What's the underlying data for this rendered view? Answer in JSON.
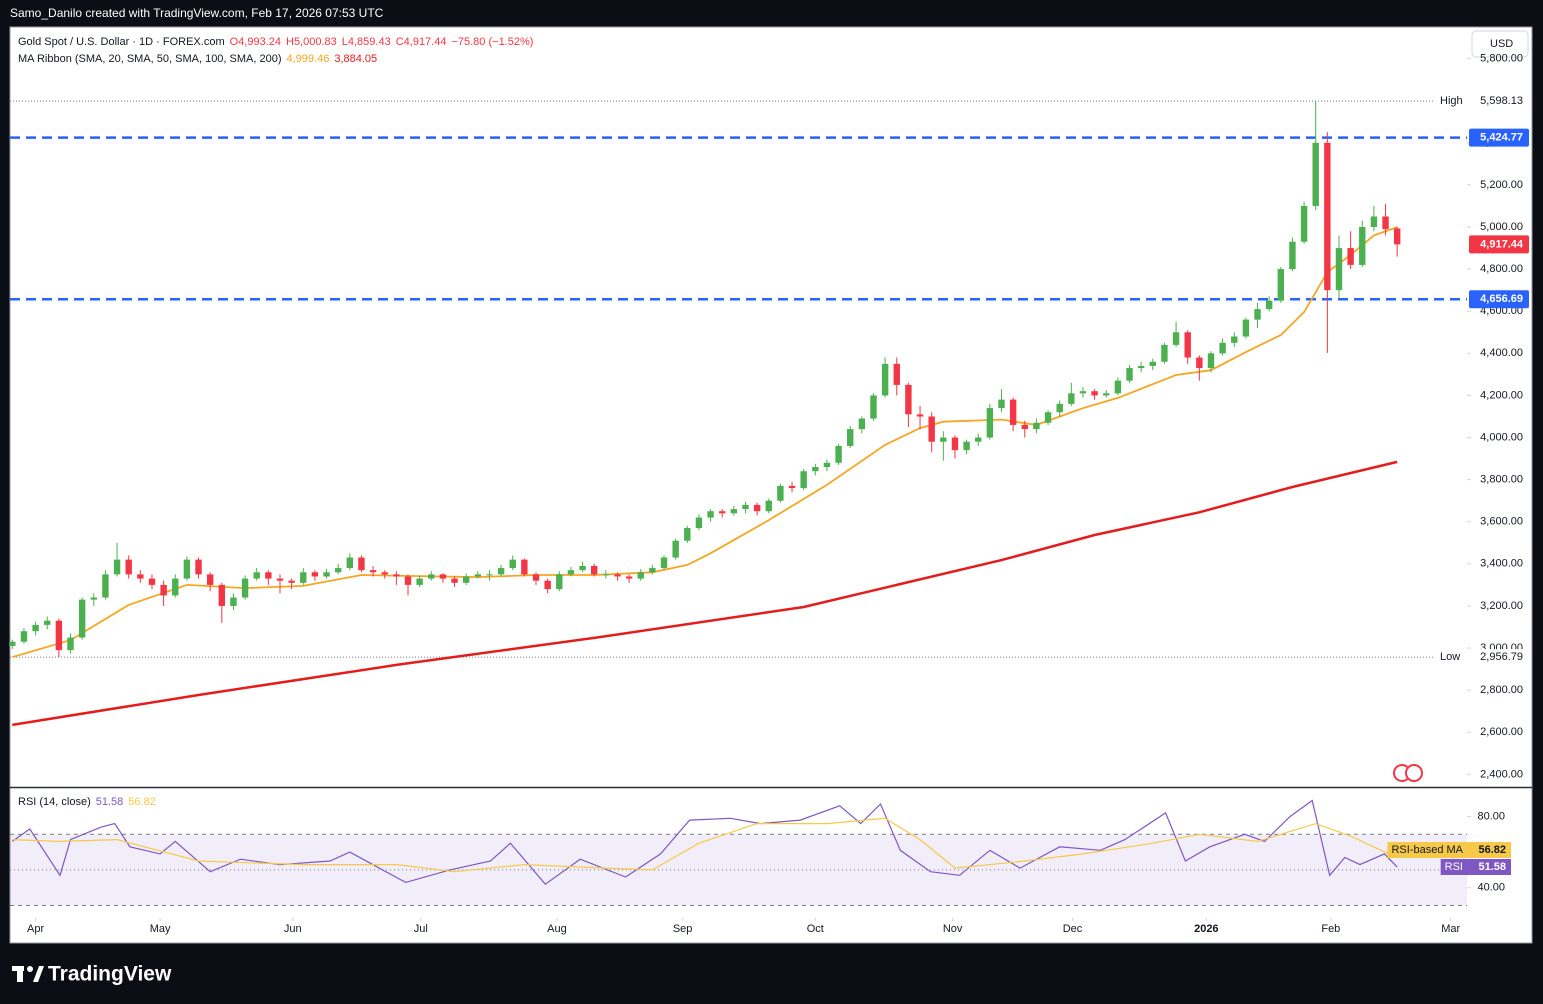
{
  "header": {
    "attribution": "Samo_Danilo created with TradingView.com, Feb 17, 2026 07:53 UTC"
  },
  "footer": {
    "brand": "TradingView"
  },
  "chart_data": [
    {
      "type": "candlestick",
      "title": "Gold Spot / U.S. Dollar · 1D · FOREX.com",
      "ohlc_labels": [
        "O4,993.24",
        "H5,000.83",
        "L4,859.43",
        "C4,917.44",
        "−75.80 (−1.52%)"
      ],
      "currency": "USD",
      "up_color": "#4caf50",
      "down_color": "#f23645",
      "ohlc": [
        [
          3010,
          3040,
          2995,
          3030
        ],
        [
          3030,
          3095,
          3020,
          3080
        ],
        [
          3080,
          3125,
          3060,
          3110
        ],
        [
          3110,
          3150,
          3090,
          3130
        ],
        [
          3130,
          3140,
          2956.79,
          2990
        ],
        [
          2990,
          3070,
          2975,
          3050
        ],
        [
          3050,
          3240,
          3040,
          3230
        ],
        [
          3230,
          3260,
          3200,
          3240
        ],
        [
          3240,
          3370,
          3230,
          3350
        ],
        [
          3350,
          3500,
          3340,
          3420
        ],
        [
          3420,
          3440,
          3330,
          3350
        ],
        [
          3350,
          3370,
          3310,
          3330
        ],
        [
          3330,
          3350,
          3280,
          3300
        ],
        [
          3300,
          3320,
          3200,
          3250
        ],
        [
          3250,
          3350,
          3240,
          3330
        ],
        [
          3330,
          3435,
          3320,
          3420
        ],
        [
          3420,
          3430,
          3330,
          3350
        ],
        [
          3350,
          3360,
          3270,
          3300
        ],
        [
          3300,
          3310,
          3120,
          3200
        ],
        [
          3200,
          3260,
          3180,
          3240
        ],
        [
          3240,
          3345,
          3230,
          3330
        ],
        [
          3330,
          3380,
          3320,
          3360
        ],
        [
          3360,
          3370,
          3300,
          3330
        ],
        [
          3330,
          3350,
          3260,
          3320
        ],
        [
          3320,
          3330,
          3280,
          3310
        ],
        [
          3310,
          3380,
          3300,
          3360
        ],
        [
          3360,
          3370,
          3320,
          3340
        ],
        [
          3340,
          3375,
          3330,
          3360
        ],
        [
          3360,
          3400,
          3350,
          3380
        ],
        [
          3380,
          3450,
          3370,
          3430
        ],
        [
          3430,
          3440,
          3360,
          3370
        ],
        [
          3370,
          3390,
          3340,
          3360
        ],
        [
          3360,
          3370,
          3330,
          3350
        ],
        [
          3350,
          3365,
          3300,
          3340
        ],
        [
          3340,
          3350,
          3250,
          3300
        ],
        [
          3300,
          3345,
          3290,
          3330
        ],
        [
          3330,
          3365,
          3320,
          3350
        ],
        [
          3350,
          3355,
          3310,
          3330
        ],
        [
          3330,
          3340,
          3290,
          3310
        ],
        [
          3310,
          3355,
          3300,
          3340
        ],
        [
          3340,
          3365,
          3330,
          3350
        ],
        [
          3350,
          3370,
          3320,
          3350
        ],
        [
          3350,
          3395,
          3340,
          3380
        ],
        [
          3380,
          3440,
          3370,
          3420
        ],
        [
          3420,
          3425,
          3340,
          3350
        ],
        [
          3350,
          3360,
          3300,
          3320
        ],
        [
          3320,
          3330,
          3260,
          3280
        ],
        [
          3280,
          3365,
          3270,
          3350
        ],
        [
          3350,
          3385,
          3340,
          3370
        ],
        [
          3370,
          3410,
          3360,
          3390
        ],
        [
          3390,
          3400,
          3340,
          3350
        ],
        [
          3350,
          3370,
          3330,
          3350
        ],
        [
          3350,
          3360,
          3320,
          3340
        ],
        [
          3340,
          3350,
          3310,
          3330
        ],
        [
          3330,
          3375,
          3320,
          3360
        ],
        [
          3360,
          3395,
          3350,
          3380
        ],
        [
          3380,
          3440,
          3370,
          3430
        ],
        [
          3430,
          3520,
          3420,
          3510
        ],
        [
          3510,
          3580,
          3500,
          3570
        ],
        [
          3570,
          3635,
          3560,
          3620
        ],
        [
          3620,
          3660,
          3600,
          3650
        ],
        [
          3650,
          3660,
          3620,
          3640
        ],
        [
          3640,
          3675,
          3630,
          3660
        ],
        [
          3660,
          3695,
          3640,
          3680
        ],
        [
          3680,
          3690,
          3630,
          3650
        ],
        [
          3650,
          3710,
          3640,
          3700
        ],
        [
          3700,
          3780,
          3690,
          3770
        ],
        [
          3770,
          3790,
          3740,
          3760
        ],
        [
          3760,
          3850,
          3750,
          3840
        ],
        [
          3840,
          3875,
          3820,
          3860
        ],
        [
          3860,
          3895,
          3840,
          3880
        ],
        [
          3880,
          3970,
          3870,
          3960
        ],
        [
          3960,
          4055,
          3950,
          4040
        ],
        [
          4040,
          4100,
          4020,
          4090
        ],
        [
          4090,
          4210,
          4080,
          4200
        ],
        [
          4200,
          4380,
          4190,
          4350
        ],
        [
          4350,
          4380,
          4200,
          4250
        ],
        [
          4250,
          4260,
          4050,
          4110
        ],
        [
          4110,
          4150,
          4040,
          4100
        ],
        [
          4100,
          4120,
          3930,
          3980
        ],
        [
          3980,
          4030,
          3890,
          4000
        ],
        [
          4000,
          4010,
          3900,
          3940
        ],
        [
          3940,
          3990,
          3920,
          3980
        ],
        [
          3980,
          4020,
          3960,
          4000
        ],
        [
          4000,
          4160,
          3990,
          4140
        ],
        [
          4140,
          4230,
          4120,
          4180
        ],
        [
          4180,
          4190,
          4030,
          4060
        ],
        [
          4060,
          4080,
          4000,
          4040
        ],
        [
          4040,
          4090,
          4020,
          4070
        ],
        [
          4070,
          4130,
          4060,
          4120
        ],
        [
          4120,
          4175,
          4100,
          4160
        ],
        [
          4160,
          4260,
          4150,
          4210
        ],
        [
          4210,
          4240,
          4190,
          4220
        ],
        [
          4220,
          4230,
          4180,
          4200
        ],
        [
          4200,
          4225,
          4190,
          4210
        ],
        [
          4210,
          4285,
          4200,
          4270
        ],
        [
          4270,
          4345,
          4260,
          4330
        ],
        [
          4330,
          4360,
          4310,
          4340
        ],
        [
          4340,
          4375,
          4320,
          4360
        ],
        [
          4360,
          4450,
          4350,
          4440
        ],
        [
          4440,
          4550,
          4430,
          4500
        ],
        [
          4500,
          4510,
          4350,
          4380
        ],
        [
          4380,
          4390,
          4270,
          4330
        ],
        [
          4330,
          4410,
          4310,
          4400
        ],
        [
          4400,
          4470,
          4390,
          4450
        ],
        [
          4450,
          4500,
          4430,
          4480
        ],
        [
          4480,
          4570,
          4470,
          4560
        ],
        [
          4560,
          4640,
          4520,
          4610
        ],
        [
          4610,
          4670,
          4600,
          4650
        ],
        [
          4650,
          4810,
          4640,
          4800
        ],
        [
          4800,
          4950,
          4790,
          4930
        ],
        [
          4930,
          5120,
          4920,
          5100
        ],
        [
          5100,
          5598.13,
          5080,
          5400
        ],
        [
          5400,
          5450,
          4402,
          4700
        ],
        [
          4700,
          4960,
          4660,
          4900
        ],
        [
          4900,
          4980,
          4800,
          4820
        ],
        [
          4820,
          5030,
          4810,
          5000
        ],
        [
          5000,
          5100,
          4980,
          5050
        ],
        [
          5050,
          5110,
          4960,
          4990
        ],
        [
          4993.24,
          5000.83,
          4859.43,
          4917.44
        ]
      ],
      "last_label": "4,917.44",
      "overlays": {
        "name": "MA Ribbon (SMA, 20, SMA, 50, SMA, 100, SMA, 200)",
        "series": [
          {
            "color": "#f5a623",
            "value_label": "4,999.46",
            "x": [
              0,
              5,
              10,
              15,
              20,
              25,
              30,
              35,
              40,
              45,
              50,
              55,
              58,
              60,
              65,
              70,
              75,
              78,
              80,
              85,
              88,
              92,
              95,
              100,
              103,
              106,
              109,
              111,
              113,
              115,
              117,
              119
            ],
            "values": [
              2957,
              3038,
              3205,
              3300,
              3285,
              3295,
              3347,
              3342,
              3337,
              3347,
              3347,
              3360,
              3395,
              3450,
              3608,
              3775,
              3965,
              4045,
              4075,
              4085,
              4060,
              4140,
              4188,
              4297,
              4320,
              4406,
              4487,
              4596,
              4786,
              4867,
              4960,
              4999.46
            ]
          },
          {
            "color": "#e51c1c",
            "value_label": "3,884.05",
            "x": [
              0,
              16,
              33,
              50,
              68,
              76,
              85,
              93,
              102,
              110,
              119
            ],
            "values": [
              2635,
              2777,
              2920,
              3048,
              3195,
              3300,
              3418,
              3537,
              3645,
              3765,
              3884.05
            ]
          }
        ]
      },
      "levels": [
        {
          "value": 5424.77,
          "label": "5,424.77",
          "color": "#2962ff"
        },
        {
          "value": 4656.69,
          "label": "4,656.69",
          "color": "#2962ff"
        }
      ],
      "high": {
        "text": "High",
        "value": 5598.13,
        "label": "5,598.13"
      },
      "low": {
        "text": "Low",
        "value": 2956.79,
        "label": "2,956.79"
      },
      "xlim": [
        -0.2,
        125
      ],
      "xticks": [
        {
          "value": 2,
          "label": "Apr"
        },
        {
          "value": 12.7,
          "label": "May"
        },
        {
          "value": 24.1,
          "label": "Jun"
        },
        {
          "value": 35.1,
          "label": "Jul"
        },
        {
          "value": 46.8,
          "label": "Aug"
        },
        {
          "value": 57.6,
          "label": "Sep"
        },
        {
          "value": 69,
          "label": "Oct"
        },
        {
          "value": 80.8,
          "label": "Nov"
        },
        {
          "value": 91.1,
          "label": "Dec"
        },
        {
          "value": 102.6,
          "label": "2026"
        },
        {
          "value": 113.3,
          "label": "Feb"
        },
        {
          "value": 123.6,
          "label": "Mar"
        }
      ],
      "ylim": [
        2340,
        5950
      ],
      "yticks": [
        {
          "value": 2400,
          "label": "2,400.00"
        },
        {
          "value": 2600,
          "label": "2,600.00"
        },
        {
          "value": 2800,
          "label": "2,800.00"
        },
        {
          "value": 3000,
          "label": "3,000.00"
        },
        {
          "value": 3200,
          "label": "3,200.00"
        },
        {
          "value": 3400,
          "label": "3,400.00"
        },
        {
          "value": 3600,
          "label": "3,600.00"
        },
        {
          "value": 3800,
          "label": "3,800.00"
        },
        {
          "value": 4000,
          "label": "4,000.00"
        },
        {
          "value": 4200,
          "label": "4,200.00"
        },
        {
          "value": 4400,
          "label": "4,400.00"
        },
        {
          "value": 4600,
          "label": "4,600.00"
        },
        {
          "value": 4800,
          "label": "4,800.00"
        },
        {
          "value": 5000,
          "label": "5,000.00"
        },
        {
          "value": 5200,
          "label": "5,200.00"
        },
        {
          "value": 5400,
          "label": "5,400.00"
        },
        {
          "value": 5600,
          "label": "5,600.00"
        },
        {
          "value": 5800,
          "label": "5,800.00"
        }
      ]
    },
    {
      "type": "line",
      "title": "RSI (14, close)",
      "xlim": [
        -0.2,
        125
      ],
      "ylim": [
        23,
        96
      ],
      "yticks": [
        {
          "value": 40,
          "label": "40.00"
        },
        {
          "value": 80,
          "label": "80.00"
        }
      ],
      "bands": [
        30,
        50,
        70
      ],
      "series": [
        {
          "name": "RSI",
          "color": "#7e57c2",
          "value_label": "51.58",
          "x": [
            0,
            1.5,
            4.1,
            5,
            7.6,
            8.8,
            10.1,
            12.7,
            14,
            17,
            19.6,
            23,
            27.3,
            29,
            33.8,
            37.6,
            41.1,
            42.8,
            45.8,
            48.8,
            52.7,
            55.7,
            58.2,
            61.7,
            64.3,
            67.7,
            71.1,
            72.9,
            74.6,
            76.3,
            78.9,
            81.4,
            84,
            86.6,
            90,
            93.5,
            95.6,
            99.1,
            100.8,
            102.9,
            105.9,
            107.6,
            109.8,
            111.7,
            113.2,
            114.5,
            115.8,
            117.9,
            119
          ],
          "values": [
            66,
            73,
            47,
            67,
            74,
            76,
            63,
            59,
            66,
            49,
            56,
            53,
            55,
            60,
            43,
            50,
            55,
            65,
            42,
            56,
            46,
            59,
            78,
            79,
            76,
            78,
            86,
            76,
            87,
            61,
            49,
            47,
            61,
            51,
            63,
            61,
            67,
            82,
            55,
            63,
            70,
            66,
            80,
            89,
            47,
            57,
            53,
            59,
            51.58
          ]
        },
        {
          "name": "RSI-based MA",
          "color": "#f7c948",
          "value_label": "56.82",
          "x": [
            0,
            4,
            9,
            16,
            25,
            33,
            38,
            44,
            51,
            55,
            59,
            64,
            70,
            75,
            78,
            81,
            87,
            92,
            98,
            102,
            107,
            112,
            115,
            119
          ],
          "values": [
            67,
            66,
            67,
            55,
            53,
            53,
            49,
            53,
            51,
            50,
            65,
            76,
            76,
            79,
            67,
            51,
            55,
            59,
            65,
            70,
            66,
            76,
            69,
            56.82
          ]
        }
      ]
    }
  ]
}
